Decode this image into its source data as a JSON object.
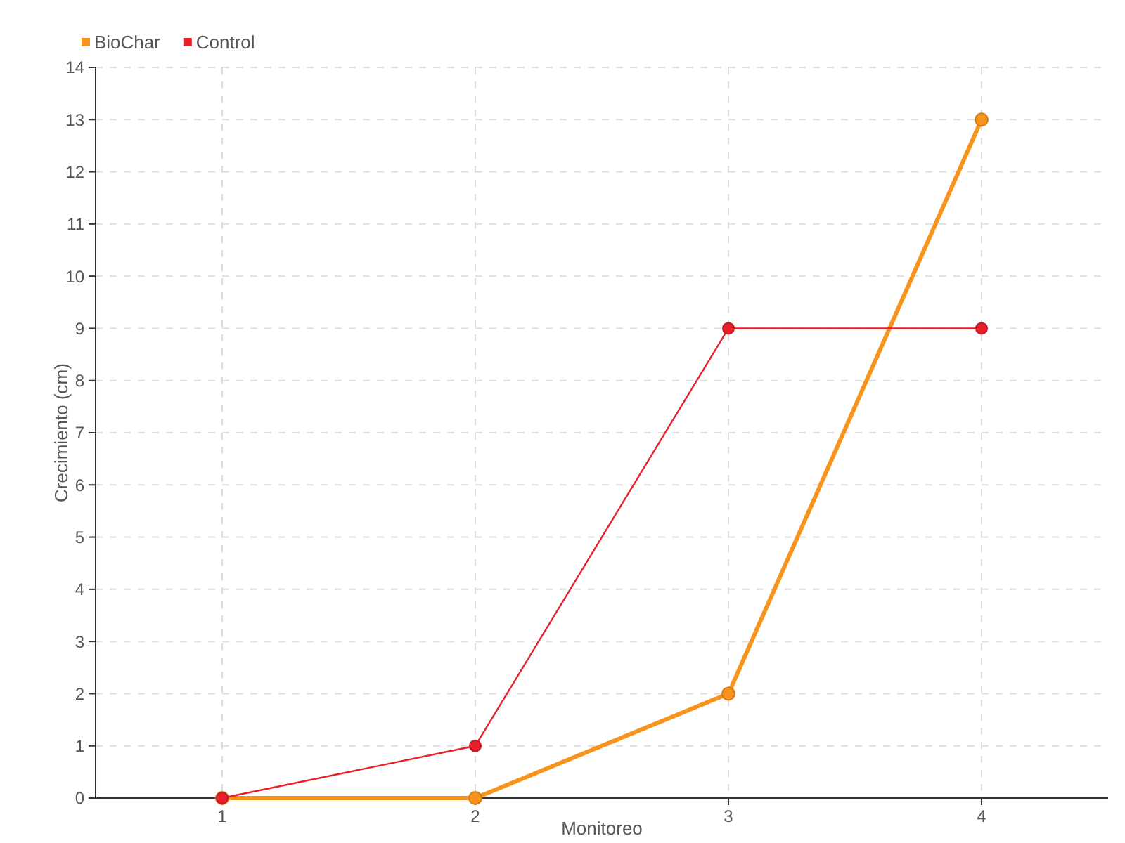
{
  "chart_data": {
    "type": "line",
    "xlabel": "Monitoreo",
    "ylabel": "Crecimiento (cm)",
    "x": [
      1,
      2,
      3,
      4
    ],
    "xlim": [
      0.5,
      4.5
    ],
    "xticks": [
      1,
      2,
      3,
      4
    ],
    "ylim": [
      0,
      14
    ],
    "yticks": [
      0,
      1,
      2,
      3,
      4,
      5,
      6,
      7,
      8,
      9,
      10,
      11,
      12,
      13,
      14
    ],
    "grid": true,
    "legend": "top left",
    "marker": "circle",
    "series": [
      {
        "name": "BioChar",
        "color": "#f7941d",
        "values": [
          0,
          0,
          2,
          13
        ]
      },
      {
        "name": "Control",
        "color": "#e8202a",
        "values": [
          0,
          1,
          9,
          9
        ]
      }
    ]
  }
}
